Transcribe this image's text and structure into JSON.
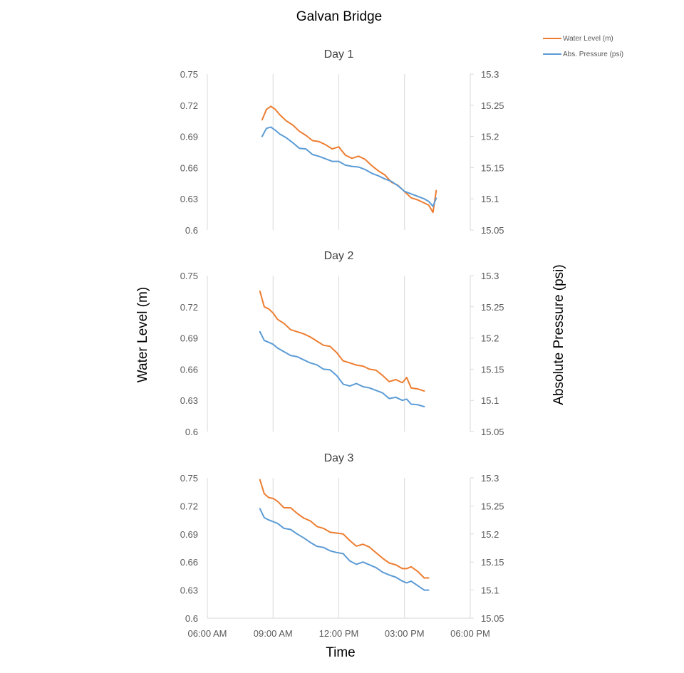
{
  "chart_data": {
    "type": "line",
    "title": "Galvan Bridge",
    "xlabel": "Time",
    "ylabel": "Water Level (m)",
    "y2label": "Absolute Pressure (psi)",
    "legend_placement": "top-right",
    "legend": [
      {
        "name": "Water Level (m)",
        "color": "#ED7D31"
      },
      {
        "name": "Abs. Pressure (psi)",
        "color": "#5B9BD5"
      }
    ],
    "x_axis": {
      "unit": "hours of day",
      "range": [
        6,
        18
      ],
      "tick_values": [
        6,
        9,
        12,
        15,
        18
      ],
      "tick_labels": [
        "06:00 AM",
        "09:00 AM",
        "12:00 PM",
        "03:00 PM",
        "06:00 PM"
      ]
    },
    "y_axis": {
      "range": [
        0.6,
        0.75
      ],
      "ticks": [
        "0.75",
        "0.72",
        "0.69",
        "0.66",
        "0.63",
        "0.6"
      ]
    },
    "y2_axis": {
      "range": [
        15.05,
        15.3
      ],
      "ticks": [
        "15.3",
        "15.25",
        "15.2",
        "15.15",
        "15.1",
        "15.05"
      ]
    },
    "grid": "vertical gridlines",
    "panels": [
      {
        "title": "Day 1",
        "series": [
          {
            "name": "Water Level (m)",
            "axis": "left",
            "x": [
              8.5,
              8.7,
              8.9,
              9.1,
              9.3,
              9.6,
              9.9,
              10.2,
              10.5,
              10.8,
              11.1,
              11.4,
              11.7,
              12.0,
              12.3,
              12.6,
              12.9,
              13.2,
              13.5,
              13.8,
              14.1,
              14.4,
              14.7,
              15.0,
              15.3,
              15.6,
              15.9,
              16.1,
              16.3,
              16.45
            ],
            "y": [
              0.706,
              0.716,
              0.719,
              0.716,
              0.711,
              0.705,
              0.701,
              0.695,
              0.691,
              0.686,
              0.685,
              0.682,
              0.678,
              0.68,
              0.672,
              0.669,
              0.671,
              0.668,
              0.662,
              0.657,
              0.653,
              0.646,
              0.643,
              0.637,
              0.631,
              0.629,
              0.626,
              0.624,
              0.617,
              0.638
            ]
          },
          {
            "name": "Abs. Pressure (psi)",
            "axis": "right",
            "x": [
              8.5,
              8.7,
              8.9,
              9.1,
              9.3,
              9.6,
              9.9,
              10.2,
              10.5,
              10.8,
              11.1,
              11.4,
              11.7,
              12.0,
              12.3,
              12.6,
              12.9,
              13.2,
              13.5,
              13.8,
              14.1,
              14.4,
              14.7,
              15.0,
              15.3,
              15.6,
              15.9,
              16.1,
              16.3,
              16.45
            ],
            "y": [
              15.2,
              15.213,
              15.215,
              15.21,
              15.204,
              15.198,
              15.19,
              15.181,
              15.18,
              15.171,
              15.168,
              15.164,
              15.16,
              15.16,
              15.154,
              15.152,
              15.151,
              15.147,
              15.141,
              15.137,
              15.132,
              15.128,
              15.121,
              15.112,
              15.108,
              15.104,
              15.1,
              15.096,
              15.088,
              15.101
            ]
          }
        ]
      },
      {
        "title": "Day 2",
        "series": [
          {
            "name": "Water Level (m)",
            "axis": "left",
            "x": [
              8.4,
              8.6,
              8.8,
              9.0,
              9.2,
              9.5,
              9.8,
              10.1,
              10.4,
              10.7,
              11.0,
              11.3,
              11.6,
              11.9,
              12.2,
              12.5,
              12.8,
              13.1,
              13.4,
              13.7,
              14.0,
              14.3,
              14.6,
              14.9,
              15.1,
              15.3,
              15.6,
              15.9
            ],
            "y": [
              0.735,
              0.72,
              0.718,
              0.714,
              0.708,
              0.704,
              0.698,
              0.696,
              0.694,
              0.691,
              0.687,
              0.683,
              0.682,
              0.676,
              0.668,
              0.666,
              0.664,
              0.663,
              0.66,
              0.659,
              0.654,
              0.648,
              0.65,
              0.647,
              0.652,
              0.642,
              0.641,
              0.639
            ]
          },
          {
            "name": "Abs. Pressure (psi)",
            "axis": "right",
            "x": [
              8.4,
              8.6,
              8.8,
              9.0,
              9.2,
              9.5,
              9.8,
              10.1,
              10.4,
              10.7,
              11.0,
              11.3,
              11.6,
              11.9,
              12.2,
              12.5,
              12.8,
              13.1,
              13.4,
              13.7,
              14.0,
              14.3,
              14.6,
              14.9,
              15.1,
              15.3,
              15.6,
              15.9
            ],
            "y": [
              15.21,
              15.196,
              15.193,
              15.19,
              15.184,
              15.178,
              15.172,
              15.17,
              15.165,
              15.16,
              15.157,
              15.15,
              15.149,
              15.14,
              15.126,
              15.123,
              15.127,
              15.122,
              15.12,
              15.116,
              15.112,
              15.103,
              15.105,
              15.1,
              15.102,
              15.094,
              15.093,
              15.09
            ]
          }
        ]
      },
      {
        "title": "Day 3",
        "series": [
          {
            "name": "Water Level (m)",
            "axis": "left",
            "x": [
              8.4,
              8.6,
              8.8,
              9.0,
              9.2,
              9.5,
              9.8,
              10.1,
              10.4,
              10.7,
              11.0,
              11.3,
              11.6,
              11.9,
              12.2,
              12.5,
              12.8,
              13.1,
              13.4,
              13.7,
              14.0,
              14.3,
              14.6,
              14.9,
              15.1,
              15.3,
              15.6,
              15.9,
              16.1
            ],
            "y": [
              0.748,
              0.733,
              0.729,
              0.728,
              0.725,
              0.718,
              0.718,
              0.712,
              0.707,
              0.704,
              0.698,
              0.696,
              0.692,
              0.691,
              0.69,
              0.683,
              0.677,
              0.679,
              0.676,
              0.67,
              0.664,
              0.659,
              0.657,
              0.653,
              0.653,
              0.655,
              0.65,
              0.643,
              0.643
            ]
          },
          {
            "name": "Abs. Pressure (psi)",
            "axis": "right",
            "x": [
              8.4,
              8.6,
              8.8,
              9.0,
              9.2,
              9.5,
              9.8,
              10.1,
              10.4,
              10.7,
              11.0,
              11.3,
              11.6,
              11.9,
              12.2,
              12.5,
              12.8,
              13.1,
              13.4,
              13.7,
              14.0,
              14.3,
              14.6,
              14.9,
              15.1,
              15.3,
              15.6,
              15.9,
              16.1
            ],
            "y": [
              15.245,
              15.229,
              15.225,
              15.222,
              15.219,
              15.21,
              15.208,
              15.2,
              15.193,
              15.185,
              15.178,
              15.176,
              15.17,
              15.167,
              15.165,
              15.152,
              15.146,
              15.15,
              15.145,
              15.14,
              15.132,
              15.127,
              15.123,
              15.116,
              15.113,
              15.116,
              15.108,
              15.1,
              15.1
            ]
          }
        ]
      }
    ]
  }
}
